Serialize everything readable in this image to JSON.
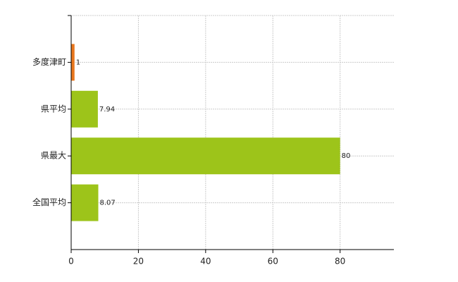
{
  "chart_data": {
    "type": "barh",
    "categories": [
      "多度津町",
      "県平均",
      "県最大",
      "全国平均"
    ],
    "values": [
      1,
      7.94,
      80,
      8.07
    ],
    "colors": [
      "#e8771e",
      "#9dc41a",
      "#9dc41a",
      "#9dc41a"
    ],
    "xlim": [
      0,
      96
    ],
    "xticks": [
      0,
      20,
      40,
      60,
      80
    ],
    "grid": true
  }
}
